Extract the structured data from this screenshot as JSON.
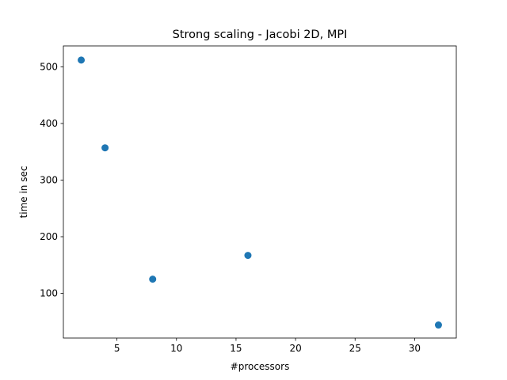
{
  "chart_data": {
    "type": "scatter",
    "title": "Strong scaling - Jacobi 2D, MPI",
    "xlabel": "#processors",
    "ylabel": "time in sec",
    "xlim": [
      0.5,
      33.5
    ],
    "ylim": [
      21,
      537
    ],
    "xticks": [
      5,
      10,
      15,
      20,
      25,
      30
    ],
    "yticks": [
      100,
      200,
      300,
      400,
      500
    ],
    "grid": false,
    "marker_color": "#1f77b4",
    "series": [
      {
        "x": [
          2,
          4,
          8,
          16,
          32
        ],
        "y": [
          512,
          357,
          125,
          167,
          44
        ]
      }
    ]
  }
}
